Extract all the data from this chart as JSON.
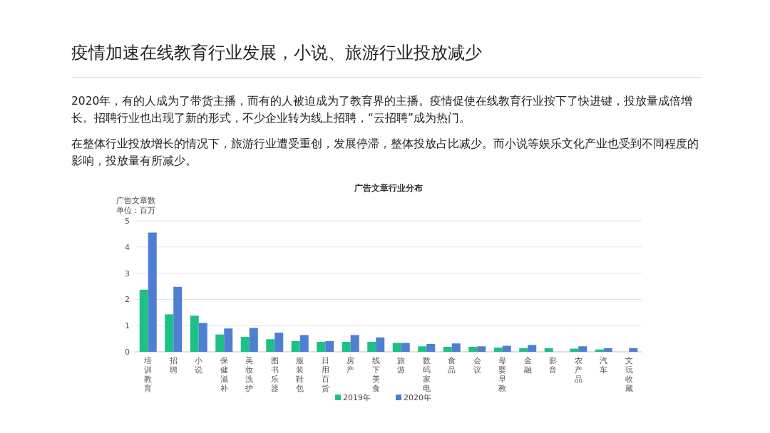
{
  "chart_data": {
    "type": "bar",
    "title": "疫情加速在线教育行业发展，小说、旅游行业投放减少",
    "subtitle": "广告文章行业分布",
    "ylabel": "广告文章数",
    "annotations": [
      "2020年，有的人成为了带货主播，而有的人被迫成为了教育界的主播。疫情促使在线教育行业按下了快进键，投放量成倍增长。招聘行业也出现了新的形式，不少企业转为线上招聘，“云招聘”成为热门。",
      "在整体行业投放增长的情况下，旅游行业遭受重创，发展停滞，整体投放占比减少。而小说等娱乐文化产业也受到不同程度的影响，投放量有所减少。",
      "单位：百万"
    ],
    "categories": [
      "培训教育",
      "招聘",
      "小说",
      "保健滋补",
      "美妆洗护",
      "图书乐器",
      "服装鞋包",
      "日用百货",
      "房产",
      "线下美食",
      "旅游",
      "数码家电",
      "食品",
      "会议",
      "母婴早教",
      "金融",
      "影音",
      "农产品",
      "汽车",
      "文玩收藏"
    ],
    "series": [
      {
        "name": "2019年",
        "color": "#1ec185",
        "values": [
          2.37,
          1.43,
          1.38,
          0.66,
          0.57,
          0.48,
          0.41,
          0.38,
          0.38,
          0.38,
          0.34,
          0.21,
          0.19,
          0.19,
          0.16,
          0.14,
          0.14,
          0.12,
          0.09,
          null
        ]
      },
      {
        "name": "2020年",
        "color": "#4e7fd3",
        "values": [
          4.55,
          2.48,
          1.1,
          0.89,
          0.91,
          0.73,
          0.64,
          0.41,
          0.64,
          0.55,
          0.34,
          0.3,
          0.32,
          0.21,
          0.23,
          0.26,
          null,
          0.21,
          0.14,
          0.14
        ]
      }
    ],
    "ylim": [
      0,
      5
    ],
    "yticks": [
      0,
      1,
      2,
      3,
      4,
      5
    ],
    "grid": "y",
    "legend": "bottom"
  }
}
